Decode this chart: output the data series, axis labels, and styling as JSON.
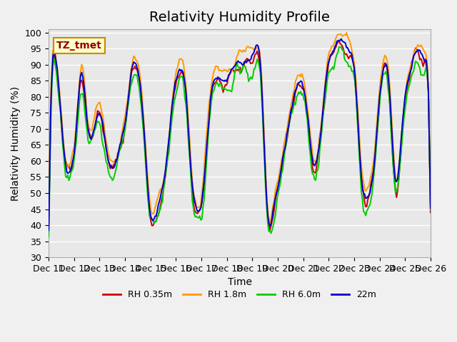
{
  "title": "Relativity Humidity Profile",
  "ylabel": "Relativity Humidity (%)",
  "xlabel": "Time",
  "annotation": "TZ_tmet",
  "ylim": [
    30,
    101
  ],
  "yticks": [
    30,
    35,
    40,
    45,
    50,
    55,
    60,
    65,
    70,
    75,
    80,
    85,
    90,
    95,
    100
  ],
  "colors": {
    "RH 0.35m": "#cc0000",
    "RH 1.8m": "#ff9900",
    "RH 6.0m": "#00cc00",
    "22m": "#0000cc"
  },
  "legend_labels": [
    "RH 0.35m",
    "RH 1.8m",
    "RH 6.0m",
    "22m"
  ],
  "x_tick_labels": [
    "Dec 11",
    "Dec 12",
    "Dec 13",
    "Dec 14",
    "Dec 15",
    "Dec 16",
    "Dec 17",
    "Dec 18",
    "Dec 19",
    "Dec 20",
    "Dec 21",
    "Dec 22",
    "Dec 23",
    "Dec 24",
    "Dec 25",
    "Dec 26"
  ],
  "background_color": "#e8e8e8",
  "plot_bg_color": "#e8e8e8",
  "grid_color": "#ffffff",
  "n_points": 360,
  "title_fontsize": 14,
  "axis_fontsize": 10,
  "tick_fontsize": 9
}
